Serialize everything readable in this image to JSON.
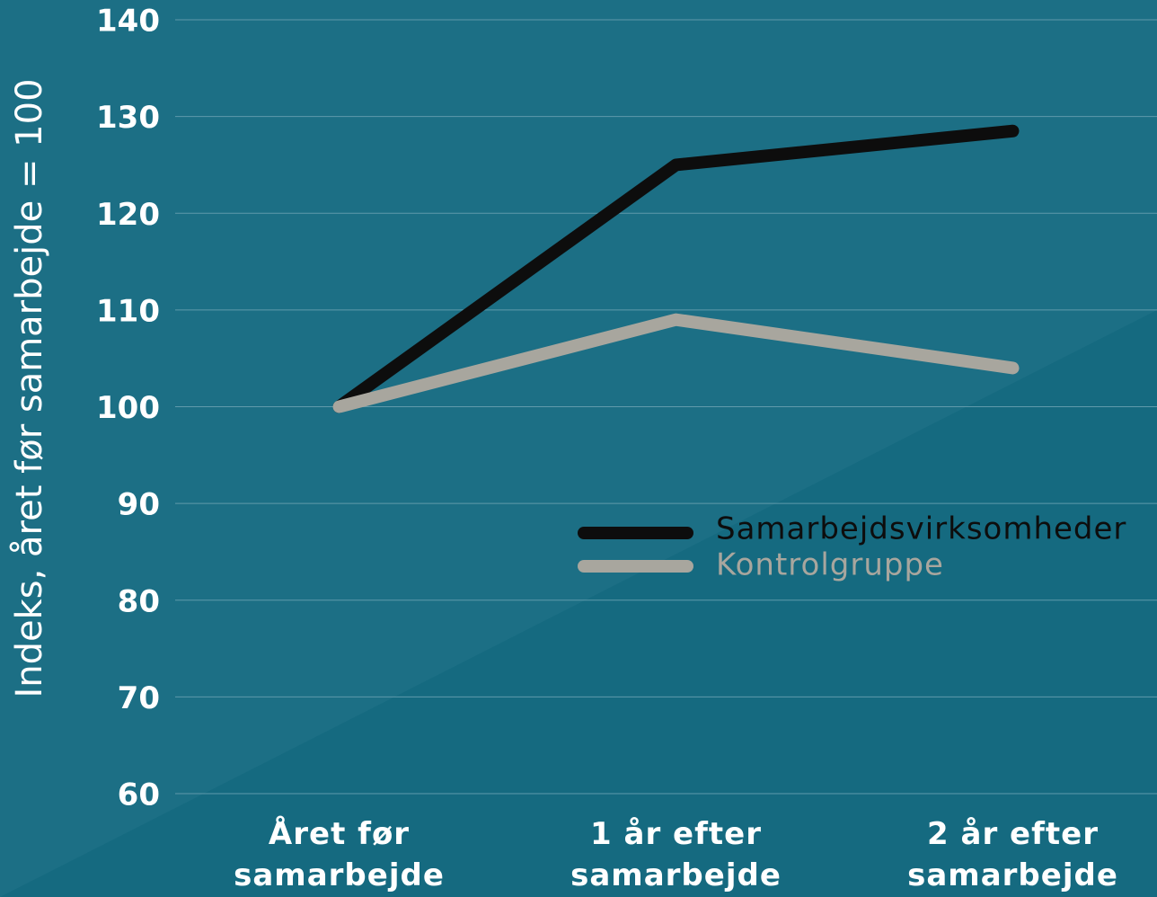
{
  "chart_data": {
    "type": "line",
    "y_label": "Indeks, året før samarbejde = 100",
    "categories": [
      "Året før samarbejde",
      "1 år efter samarbejde",
      "2 år efter samarbejde"
    ],
    "series": [
      {
        "name": "Samarbejdsvirksomheder",
        "color": "#0d0d0d",
        "values": [
          100,
          125,
          128.5
        ]
      },
      {
        "name": "Kontrolgruppe",
        "color": "#a8a69e",
        "values": [
          100,
          109,
          104
        ]
      }
    ],
    "ylim": [
      60,
      140
    ],
    "yticks": [
      60,
      70,
      80,
      90,
      100,
      110,
      120,
      130,
      140
    ],
    "grid": true
  }
}
